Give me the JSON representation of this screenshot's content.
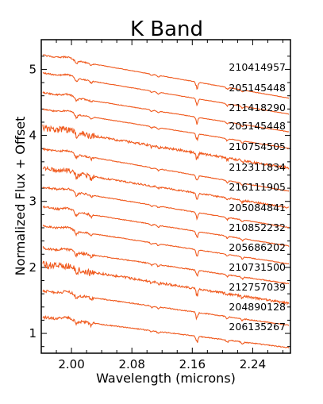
{
  "chart_data": {
    "type": "line",
    "title": "K Band",
    "xlabel": "Wavelength (microns)",
    "ylabel": "Normalized Flux + Offset",
    "xlim": [
      1.96,
      2.29
    ],
    "ylim": [
      0.7,
      5.45
    ],
    "x_ticks": [
      2.0,
      2.08,
      2.16,
      2.24
    ],
    "x_tick_labels": [
      "2.00",
      "2.08",
      "2.16",
      "2.24"
    ],
    "y_ticks": [
      1,
      2,
      3,
      4,
      5
    ],
    "y_tick_labels": [
      "1",
      "2",
      "3",
      "4",
      "5"
    ],
    "line_color": "#f05a1e",
    "grid": false,
    "series": [
      {
        "label": "210414957",
        "start": 5.22,
        "end": 4.56,
        "noise": 0.01
      },
      {
        "label": "205145448",
        "start": 4.95,
        "end": 4.32,
        "noise": 0.01
      },
      {
        "label": "211418290",
        "start": 4.65,
        "end": 4.05,
        "noise": 0.012
      },
      {
        "label": "205145448",
        "start": 4.4,
        "end": 3.8,
        "noise": 0.01
      },
      {
        "label": "210754505",
        "start": 4.12,
        "end": 3.5,
        "noise": 0.05
      },
      {
        "label": "212311834",
        "start": 3.8,
        "end": 3.15,
        "noise": 0.015
      },
      {
        "label": "216111905",
        "start": 3.5,
        "end": 2.9,
        "noise": 0.035
      },
      {
        "label": "205084841",
        "start": 3.22,
        "end": 2.6,
        "noise": 0.015
      },
      {
        "label": "210852232",
        "start": 2.92,
        "end": 2.32,
        "noise": 0.015
      },
      {
        "label": "205686202",
        "start": 2.63,
        "end": 2.05,
        "noise": 0.015
      },
      {
        "label": "210731500",
        "start": 2.3,
        "end": 1.75,
        "noise": 0.02
      },
      {
        "label": "212757039",
        "start": 2.05,
        "end": 1.45,
        "noise": 0.05
      },
      {
        "label": "204890128",
        "start": 1.65,
        "end": 1.12,
        "noise": 0.02
      },
      {
        "label": "206135267",
        "start": 1.25,
        "end": 0.78,
        "noise": 0.02
      }
    ]
  }
}
